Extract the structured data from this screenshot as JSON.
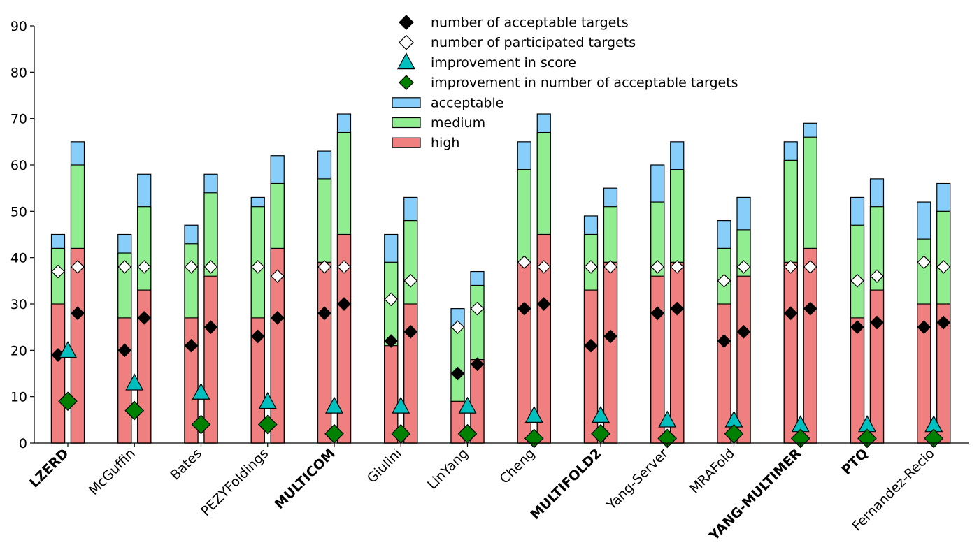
{
  "chart_data": {
    "type": "bar",
    "categories": [
      "LZERD",
      "McGuffin",
      "Bates",
      "PEZYFoldings",
      "MULTICOM",
      "Giulini",
      "LinYang",
      "Cheng",
      "MULTIFOLD2",
      "Yang-Server",
      "MRAFold",
      "YANG-MULTIMER",
      "PTQ",
      "Fernandez-Recio"
    ],
    "bold_categories": [
      "LZERD",
      "MULTICOM",
      "MULTIFOLD2",
      "YANG-MULTIMER",
      "PTQ"
    ],
    "ylim": [
      0,
      90
    ],
    "yticks": [
      0,
      10,
      20,
      30,
      40,
      50,
      60,
      70,
      80,
      90
    ],
    "stack_levels": [
      {
        "name": "high",
        "color": "#f08080"
      },
      {
        "name": "medium",
        "color": "#90ee90"
      },
      {
        "name": "acceptable",
        "color": "#87cefa"
      }
    ],
    "bars_left": {
      "high": [
        30,
        27,
        27,
        27,
        39,
        21,
        9,
        39,
        33,
        36,
        30,
        39,
        27,
        30
      ],
      "medium": [
        42,
        41,
        43,
        51,
        57,
        39,
        25,
        59,
        45,
        52,
        42,
        61,
        47,
        44
      ],
      "acceptable": [
        45,
        45,
        47,
        53,
        63,
        45,
        29,
        65,
        49,
        60,
        48,
        65,
        53,
        52
      ]
    },
    "bars_right": {
      "high": [
        42,
        33,
        36,
        42,
        45,
        30,
        18,
        45,
        39,
        39,
        36,
        42,
        33,
        30
      ],
      "medium": [
        60,
        51,
        54,
        56,
        67,
        48,
        34,
        67,
        51,
        59,
        46,
        66,
        51,
        50
      ],
      "acceptable": [
        65,
        58,
        58,
        62,
        71,
        53,
        37,
        71,
        55,
        65,
        53,
        69,
        57,
        56
      ]
    },
    "acceptable_targets_left": [
      19,
      20,
      21,
      23,
      28,
      22,
      15,
      29,
      21,
      28,
      22,
      28,
      25,
      25
    ],
    "acceptable_targets_right": [
      28,
      27,
      25,
      27,
      30,
      24,
      17,
      30,
      23,
      29,
      24,
      29,
      26,
      26
    ],
    "participated_targets_left": [
      37,
      38,
      38,
      38,
      38,
      31,
      25,
      39,
      38,
      38,
      35,
      38,
      35,
      39
    ],
    "participated_targets_right": [
      38,
      38,
      38,
      36,
      38,
      35,
      29,
      38,
      38,
      38,
      38,
      38,
      36,
      38
    ],
    "improvement_score": [
      20,
      13,
      11,
      9,
      8,
      8,
      8,
      6,
      6,
      5,
      5,
      4,
      4,
      4
    ],
    "improvement_acceptable": [
      9,
      7,
      4,
      4,
      2,
      2,
      2,
      1,
      2,
      1,
      2,
      1,
      1,
      1
    ],
    "legend_position": "top-center",
    "legend": [
      {
        "label": "number of acceptable targets",
        "marker": "diamond",
        "fill": "#000000"
      },
      {
        "label": "number of participated targets",
        "marker": "diamond",
        "fill": "#ffffff"
      },
      {
        "label": "improvement in score",
        "marker": "triangle",
        "fill": "#00bfbf"
      },
      {
        "label": "improvement in number of acceptable targets",
        "marker": "diamond",
        "fill": "#008000"
      },
      {
        "label": "acceptable",
        "marker": "box",
        "fill": "#87cefa"
      },
      {
        "label": "medium",
        "marker": "box",
        "fill": "#90ee90"
      },
      {
        "label": "high",
        "marker": "box",
        "fill": "#f08080"
      }
    ]
  }
}
